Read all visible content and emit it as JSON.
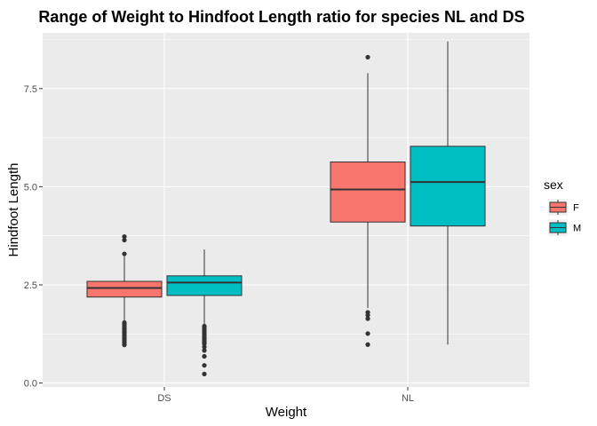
{
  "chart_data": {
    "type": "box",
    "title": "Range of Weight to Hindfoot Length ratio for species NL and DS",
    "xlabel": "Weight",
    "ylabel": "Hindfoot Length",
    "ylim": [
      -0.1,
      8.92
    ],
    "yticks": [
      0.0,
      2.5,
      5.0,
      7.5
    ],
    "ytick_labels": [
      "0.0",
      "2.5",
      "5.0",
      "7.5"
    ],
    "categories": [
      "DS",
      "NL"
    ],
    "grid": true,
    "legend": {
      "title": "sex",
      "position": "right"
    },
    "series": [
      {
        "name": "F",
        "color": "#F8766D",
        "boxes": [
          {
            "category": "DS",
            "min": 1.58,
            "q1": 2.19,
            "median": 2.42,
            "q3": 2.59,
            "max": 3.23,
            "outliers": [
              0.97,
              1.0,
              1.04,
              1.09,
              1.13,
              1.18,
              1.22,
              1.27,
              1.31,
              1.36,
              1.4,
              1.45,
              1.5,
              1.54,
              3.29,
              3.64,
              3.73
            ]
          },
          {
            "category": "NL",
            "min": 1.91,
            "q1": 4.1,
            "median": 4.93,
            "q3": 5.63,
            "max": 7.89,
            "outliers": [
              0.98,
              1.26,
              1.64,
              1.73,
              1.8,
              8.3
            ]
          }
        ]
      },
      {
        "name": "M",
        "color": "#00BFC4",
        "boxes": [
          {
            "category": "DS",
            "min": 1.49,
            "q1": 2.23,
            "median": 2.56,
            "q3": 2.73,
            "max": 3.4,
            "outliers": [
              0.23,
              0.45,
              0.68,
              0.83,
              0.92,
              1.0,
              1.05,
              1.1,
              1.15,
              1.2,
              1.25,
              1.3,
              1.35,
              1.4,
              1.45
            ]
          },
          {
            "category": "NL",
            "min": 0.98,
            "q1": 4.0,
            "median": 5.12,
            "q3": 6.03,
            "max": 8.7,
            "outliers": []
          }
        ]
      }
    ]
  }
}
